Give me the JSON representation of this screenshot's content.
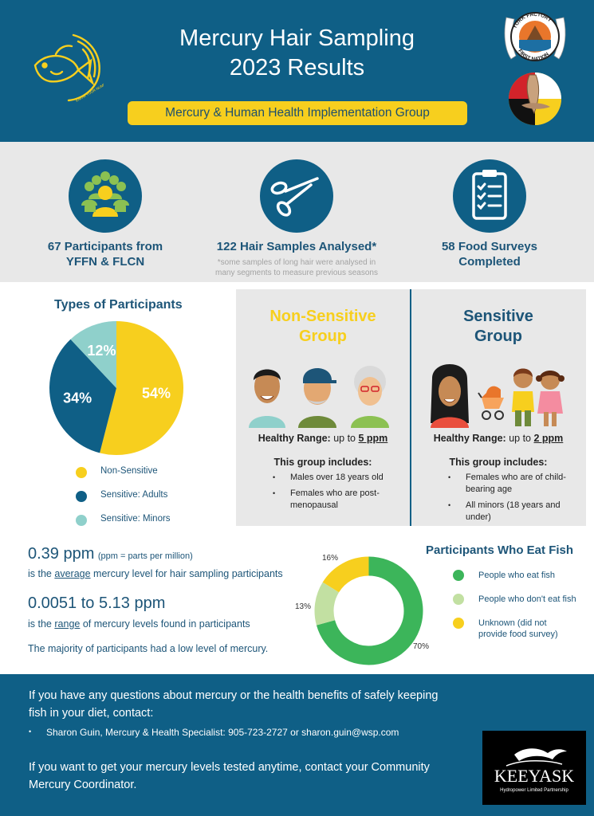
{
  "header": {
    "title_line1": "Mercury Hair Sampling",
    "title_line2": "2023 Results",
    "subtitle": "Mercury & Human Health Implementation Group",
    "fish_logo_text": "KNOW YOUR NUMBER",
    "yffn_logo_top": "YORK FACTORY",
    "yffn_logo_bottom": "FIRST NATION",
    "colors": {
      "header_bg": "#0f5f86",
      "subtitle_bg": "#f7cf1e"
    }
  },
  "stats": [
    {
      "icon": "people-group-icon",
      "label_line1": "67 Participants from",
      "label_line2": "YFFN & FLCN"
    },
    {
      "icon": "scissors-icon",
      "label_line1": "122 Hair Samples Analysed*",
      "note_line1": "*some samples of long hair were analysed in",
      "note_line2": "many segments to measure previous seasons"
    },
    {
      "icon": "clipboard-checklist-icon",
      "label_line1": "58 Food Surveys",
      "label_line2": "Completed"
    }
  ],
  "participants_chart": {
    "title": "Types of Participants",
    "chart_data": {
      "type": "pie",
      "categories": [
        "Non-Sensitive",
        "Sensitive: Adults",
        "Sensitive: Minors"
      ],
      "values": [
        54,
        34,
        12
      ],
      "labels": [
        "54%",
        "34%",
        "12%"
      ],
      "colors": [
        "#f7cf1e",
        "#0f5f86",
        "#8fd0cb"
      ],
      "legend_position": "bottom"
    }
  },
  "groups": {
    "non_sensitive": {
      "title_line1": "Non-Sensitive",
      "title_line2": "Group",
      "range_label": "Healthy Range:",
      "range_prefix": "up to",
      "range_value": "5 ppm",
      "includes_title": "This group includes:",
      "items": [
        "Males over 18 years old",
        "Females who are post-menopausal"
      ],
      "color": "#f7cf1e"
    },
    "sensitive": {
      "title_line1": "Sensitive",
      "title_line2": "Group",
      "range_label": "Healthy Range:",
      "range_prefix": "up to",
      "range_value": "2 ppm",
      "includes_title": "This group includes:",
      "items": [
        "Females who are of child-bearing age",
        "All minors (18 years and under)"
      ],
      "color": "#1d5578"
    }
  },
  "mercury": {
    "average_value": "0.39 ppm",
    "average_unit_note": "(ppm = parts per million)",
    "average_pre": "is the",
    "average_word": "average",
    "average_post": "mercury level for hair sampling participants",
    "range_value": "0.0051 to 5.13 ppm",
    "range_pre": "is the",
    "range_word": "range",
    "range_post": "of mercury levels found in participants",
    "majority_note": "The majority of participants had a low level of mercury."
  },
  "fish_chart": {
    "title": "Participants Who Eat Fish",
    "chart_data": {
      "type": "pie",
      "style": "donut",
      "categories": [
        "People who eat fish",
        "People who don't eat fish",
        "Unknown (did not provide food survey)"
      ],
      "values": [
        70,
        13,
        16
      ],
      "labels": [
        "70%",
        "13%",
        "16%"
      ],
      "colors": [
        "#3cb55a",
        "#c2e0a2",
        "#f7cf1e"
      ],
      "legend_position": "right"
    },
    "legend_unknown_line1": "Unknown (did not",
    "legend_unknown_line2": "provide food survey)"
  },
  "footer": {
    "questions_line1": "If you have any questions about mercury or the health benefits of safely keeping",
    "questions_line2": "fish in your diet, contact:",
    "contact": "Sharon Guin, Mercury & Health Specialist: 905-723-2727 or sharon.guin@wsp.com",
    "test_line1": "If you want to get your mercury levels tested anytime, contact your Community",
    "test_line2": "Mercury Coordinator.",
    "partner_logo_text": "KEEYASK",
    "partner_logo_sub": "Hydropower Limited Partnership"
  }
}
